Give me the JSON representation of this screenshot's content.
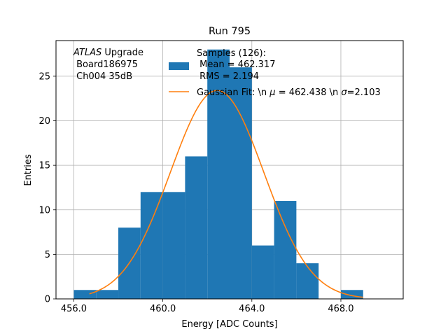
{
  "chart_data": {
    "type": "bar",
    "title": "Run 795",
    "xlabel": "Energy [ADC Counts]",
    "ylabel": "Entries",
    "xlim": [
      455.2,
      470.8
    ],
    "ylim": [
      0,
      29
    ],
    "grid": true,
    "x_ticks": [
      456.0,
      460.0,
      464.0,
      468.0
    ],
    "x_tick_labels": [
      "456.0",
      "460.0",
      "464.0",
      "468.0"
    ],
    "y_ticks": [
      0,
      5,
      10,
      15,
      20,
      25
    ],
    "y_tick_labels": [
      "0",
      "5",
      "10",
      "15",
      "20",
      "25"
    ],
    "bin_edges": [
      456,
      457,
      458,
      459,
      460,
      461,
      462,
      463,
      464,
      465,
      466,
      467,
      468,
      469,
      470
    ],
    "counts": [
      1,
      1,
      8,
      12,
      12,
      16,
      28,
      26,
      6,
      11,
      4,
      0,
      1,
      0
    ],
    "hist_color": "#1f77b4",
    "fit": {
      "mu": 462.438,
      "sigma": 2.103,
      "amplitude": 23.4,
      "x_range": [
        456.7,
        469.0
      ],
      "color": "#ff7f0e"
    },
    "annotation": {
      "italic": "ATLAS",
      "rest": " Upgrade",
      "line2": " Board186975",
      "line3": " Ch004 35dB"
    },
    "legend": {
      "placement": "top-right",
      "samples_line1": "Samples (126):",
      "samples_line2": " Mean = 462.317",
      "samples_line3": " RMS = 2.194",
      "fit_prefix": "Gaussian Fit: \\n ",
      "fit_mu_symbol": "μ",
      "fit_mid": " = 462.438 \\n ",
      "fit_sigma_symbol": "σ",
      "fit_suffix": "=2.103"
    }
  }
}
